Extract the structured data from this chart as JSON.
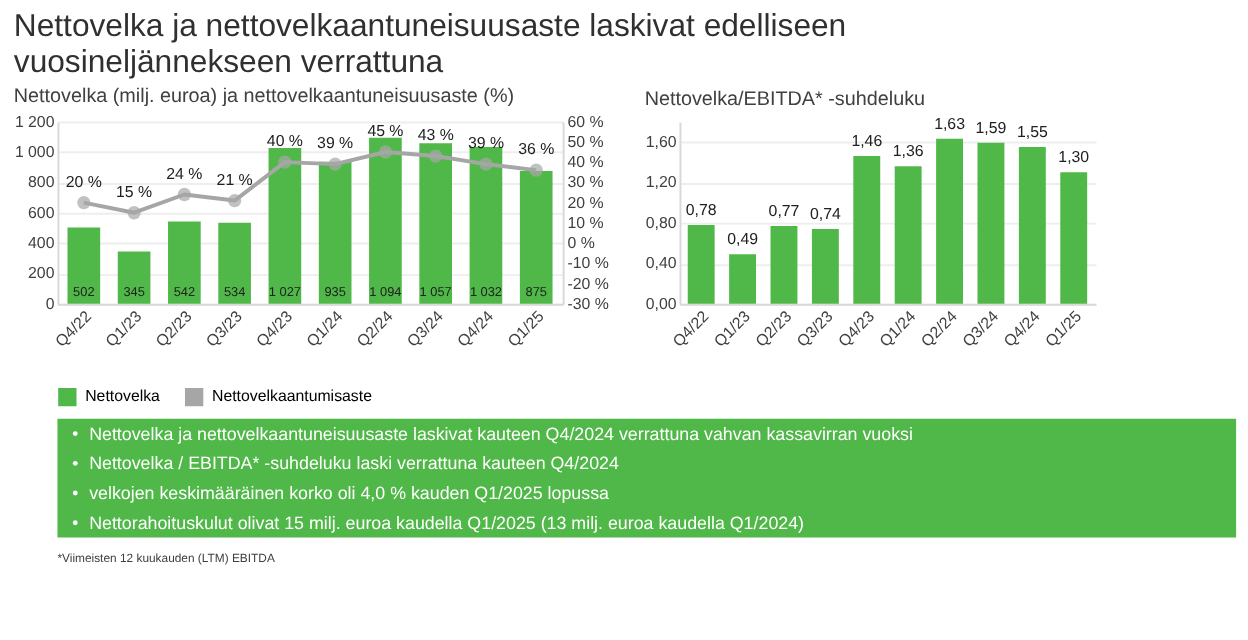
{
  "chart_data": [
    {
      "type": "bar",
      "title": "Nettovelka ja nettovelkaantuneisuusaste laskivat edelliseen vuosineljännekseen verrattuna",
      "subtitle": "Nettovelka (milj. euroa) ja nettovelkaantuneisuusaste (%)",
      "categories": [
        "Q4/22",
        "Q1/23",
        "Q2/23",
        "Q3/23",
        "Q4/23",
        "Q1/24",
        "Q2/24",
        "Q3/24",
        "Q4/24",
        "Q1/25"
      ],
      "series": [
        {
          "name": "Nettovelka",
          "type": "bar",
          "color": "#50b848",
          "values": [
            502,
            345,
            542,
            534,
            1027,
            935,
            1094,
            1057,
            1032,
            875
          ],
          "value_labels": [
            "502",
            "345",
            "542",
            "534",
            "1 027",
            "935",
            "1 094",
            "1 057",
            "1 032",
            "875"
          ]
        },
        {
          "name": "Nettovelkaantumisaste",
          "type": "line",
          "axis": "y2",
          "color": "#a6a6a6",
          "marker": "circle",
          "values": [
            20,
            15,
            24,
            21,
            40,
            39,
            45,
            43,
            39,
            36
          ],
          "value_labels": [
            "20 %",
            "15 %",
            "24 %",
            "21 %",
            "40 %",
            "39 %",
            "45 %",
            "43 %",
            "39 %",
            "36 %"
          ]
        }
      ],
      "ylim": [
        0,
        1200
      ],
      "yticks": [
        0,
        200,
        400,
        600,
        800,
        {
          "value": 1000,
          "label": "1 000"
        },
        {
          "value": 1200,
          "label": "1 200"
        }
      ],
      "y2lim": [
        -30,
        60
      ],
      "y2ticks": [
        {
          "value": -30,
          "label": "-30 %"
        },
        {
          "value": -20,
          "label": "-20 %"
        },
        {
          "value": -10,
          "label": "-10 %"
        },
        {
          "value": 0,
          "label": "0 %"
        },
        {
          "value": 10,
          "label": "10 %"
        },
        {
          "value": 20,
          "label": "20 %"
        },
        {
          "value": 30,
          "label": "30 %"
        },
        {
          "value": 40,
          "label": "40 %"
        },
        {
          "value": 50,
          "label": "50 %"
        },
        {
          "value": 60,
          "label": "60 %"
        }
      ],
      "grid": "y",
      "legend": "bottom"
    },
    {
      "type": "bar",
      "subtitle": "Nettovelka/EBITDA* -suhdeluku",
      "categories": [
        "Q4/22",
        "Q1/23",
        "Q2/23",
        "Q3/23",
        "Q4/23",
        "Q1/24",
        "Q2/24",
        "Q3/24",
        "Q4/24",
        "Q1/25"
      ],
      "values": [
        0.78,
        0.49,
        0.77,
        0.74,
        1.46,
        1.36,
        1.63,
        1.59,
        1.55,
        1.3
      ],
      "color": "#50b848",
      "value_labels": [
        "0,78",
        "0,49",
        "0,77",
        "0,74",
        "1,46",
        "1,36",
        "1,63",
        "1,59",
        "1,55",
        "1,30"
      ],
      "ylim": [
        0,
        1.8
      ],
      "yticks": [
        {
          "value": 0,
          "label": "0,00"
        },
        {
          "value": 0.4,
          "label": "0,40"
        },
        {
          "value": 0.8,
          "label": "0,80"
        },
        {
          "value": 1.2,
          "label": "1,20"
        },
        {
          "value": 1.6,
          "label": "1,60"
        }
      ],
      "grid": "y"
    },
    {
      "type": "other",
      "annotations": [
        "Nettovelka ja nettovelkaantuneisuusaste laskivat kauteen Q4/2024 verrattuna vahvan kassavirran vuoksi",
        "Nettovelka / EBITDA* -suhdeluku laski verrattuna kauteen Q4/2024",
        "velkojen keskimääräinen korko oli 4,0 % kauden Q1/2025 lopussa",
        "Nettorahoituskulut olivat 15 milj. euroa kaudella Q1/2025 (13 milj. euroa kaudella Q1/2024)"
      ]
    },
    {
      "type": "other",
      "annotations": [
        "*Viimeisten 12 kuukauden (LTM) EBITDA"
      ]
    }
  ]
}
